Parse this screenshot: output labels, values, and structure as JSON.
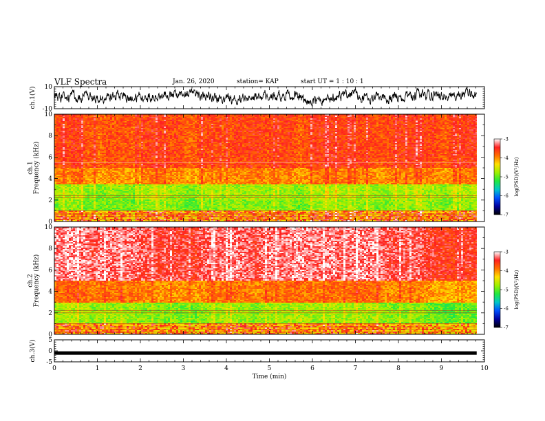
{
  "header": {
    "title": "VLF Spectra",
    "date": "Jan. 26, 2020",
    "station": "station= KAP",
    "start": "start  UT =   1 : 10 : 1"
  },
  "colorbar": {
    "label": "log(PSD)(V²/Hz)",
    "ticks": [
      "-3",
      "-4",
      "-5",
      "-6",
      "-7"
    ],
    "stops": [
      "#ffffff",
      "#ff2020",
      "#ff7000",
      "#ffe000",
      "#9ef000",
      "#20e840",
      "#00c8c8",
      "#0050ff",
      "#0000a0",
      "#000000"
    ]
  },
  "chart_data": [
    {
      "type": "line",
      "panel": "ch1-waveform",
      "ylabel": "ch.1(V)",
      "ylim": [
        -10,
        10
      ],
      "yticks": [
        "10",
        "-10"
      ],
      "xlim": [
        0,
        10
      ],
      "x": [
        0,
        0.5,
        1,
        1.5,
        2,
        2.5,
        3,
        3.5,
        4,
        4.5,
        5,
        5.5,
        6,
        6.5,
        7,
        7.5,
        8,
        8.5,
        9,
        9.5,
        9.82
      ],
      "y": [
        0,
        1,
        -1,
        1,
        0,
        3,
        2,
        1,
        -3,
        1,
        2,
        2,
        -4,
        0,
        3,
        -1,
        0,
        3,
        1,
        3,
        2
      ]
    },
    {
      "type": "heatmap",
      "panel": "ch1-spectrogram",
      "ylabel": "ch.1\nFrequency  (kHz)",
      "ylim": [
        0,
        10
      ],
      "yticks": [
        "0",
        "2",
        "4",
        "6",
        "8",
        "10"
      ],
      "xlim": [
        0,
        10
      ],
      "x_end": 9.82,
      "zlim": [
        -7,
        -3
      ],
      "log_psd_by_band": [
        {
          "freq_khz": [
            0,
            1
          ],
          "value": -4.2
        },
        {
          "freq_khz": [
            1,
            2
          ],
          "value": -4.9
        },
        {
          "freq_khz": [
            2,
            3.5
          ],
          "value": -4.8
        },
        {
          "freq_khz": [
            3.5,
            5
          ],
          "value": -4.0
        },
        {
          "freq_khz": [
            5,
            10
          ],
          "value": -3.7
        }
      ]
    },
    {
      "type": "heatmap",
      "panel": "ch2-spectrogram",
      "ylabel": "ch.2\nFrequency  (kHz)",
      "ylim": [
        0,
        10
      ],
      "yticks": [
        "0",
        "2",
        "4",
        "6",
        "8",
        "10"
      ],
      "xlim": [
        0,
        10
      ],
      "x_end": 9.82,
      "zlim": [
        -7,
        -3
      ],
      "log_psd_by_band": [
        {
          "freq_khz": [
            0,
            1
          ],
          "value": -4.2
        },
        {
          "freq_khz": [
            1,
            3
          ],
          "value": -4.8
        },
        {
          "freq_khz": [
            3,
            5
          ],
          "value": -3.9
        },
        {
          "freq_khz": [
            5,
            10
          ],
          "value": -3.3
        }
      ]
    },
    {
      "type": "line",
      "panel": "ch3-waveform",
      "ylabel": "ch.3(V)",
      "ylim": [
        -5,
        5
      ],
      "yticks": [
        "5",
        "0",
        "-5"
      ],
      "xlim": [
        0,
        10
      ],
      "xlabel": "Time  (min)",
      "xticks": [
        "0",
        "1",
        "2",
        "3",
        "4",
        "5",
        "6",
        "7",
        "8",
        "9",
        "10"
      ],
      "x": [
        0,
        9.82
      ],
      "y": [
        -1,
        -1
      ]
    }
  ]
}
